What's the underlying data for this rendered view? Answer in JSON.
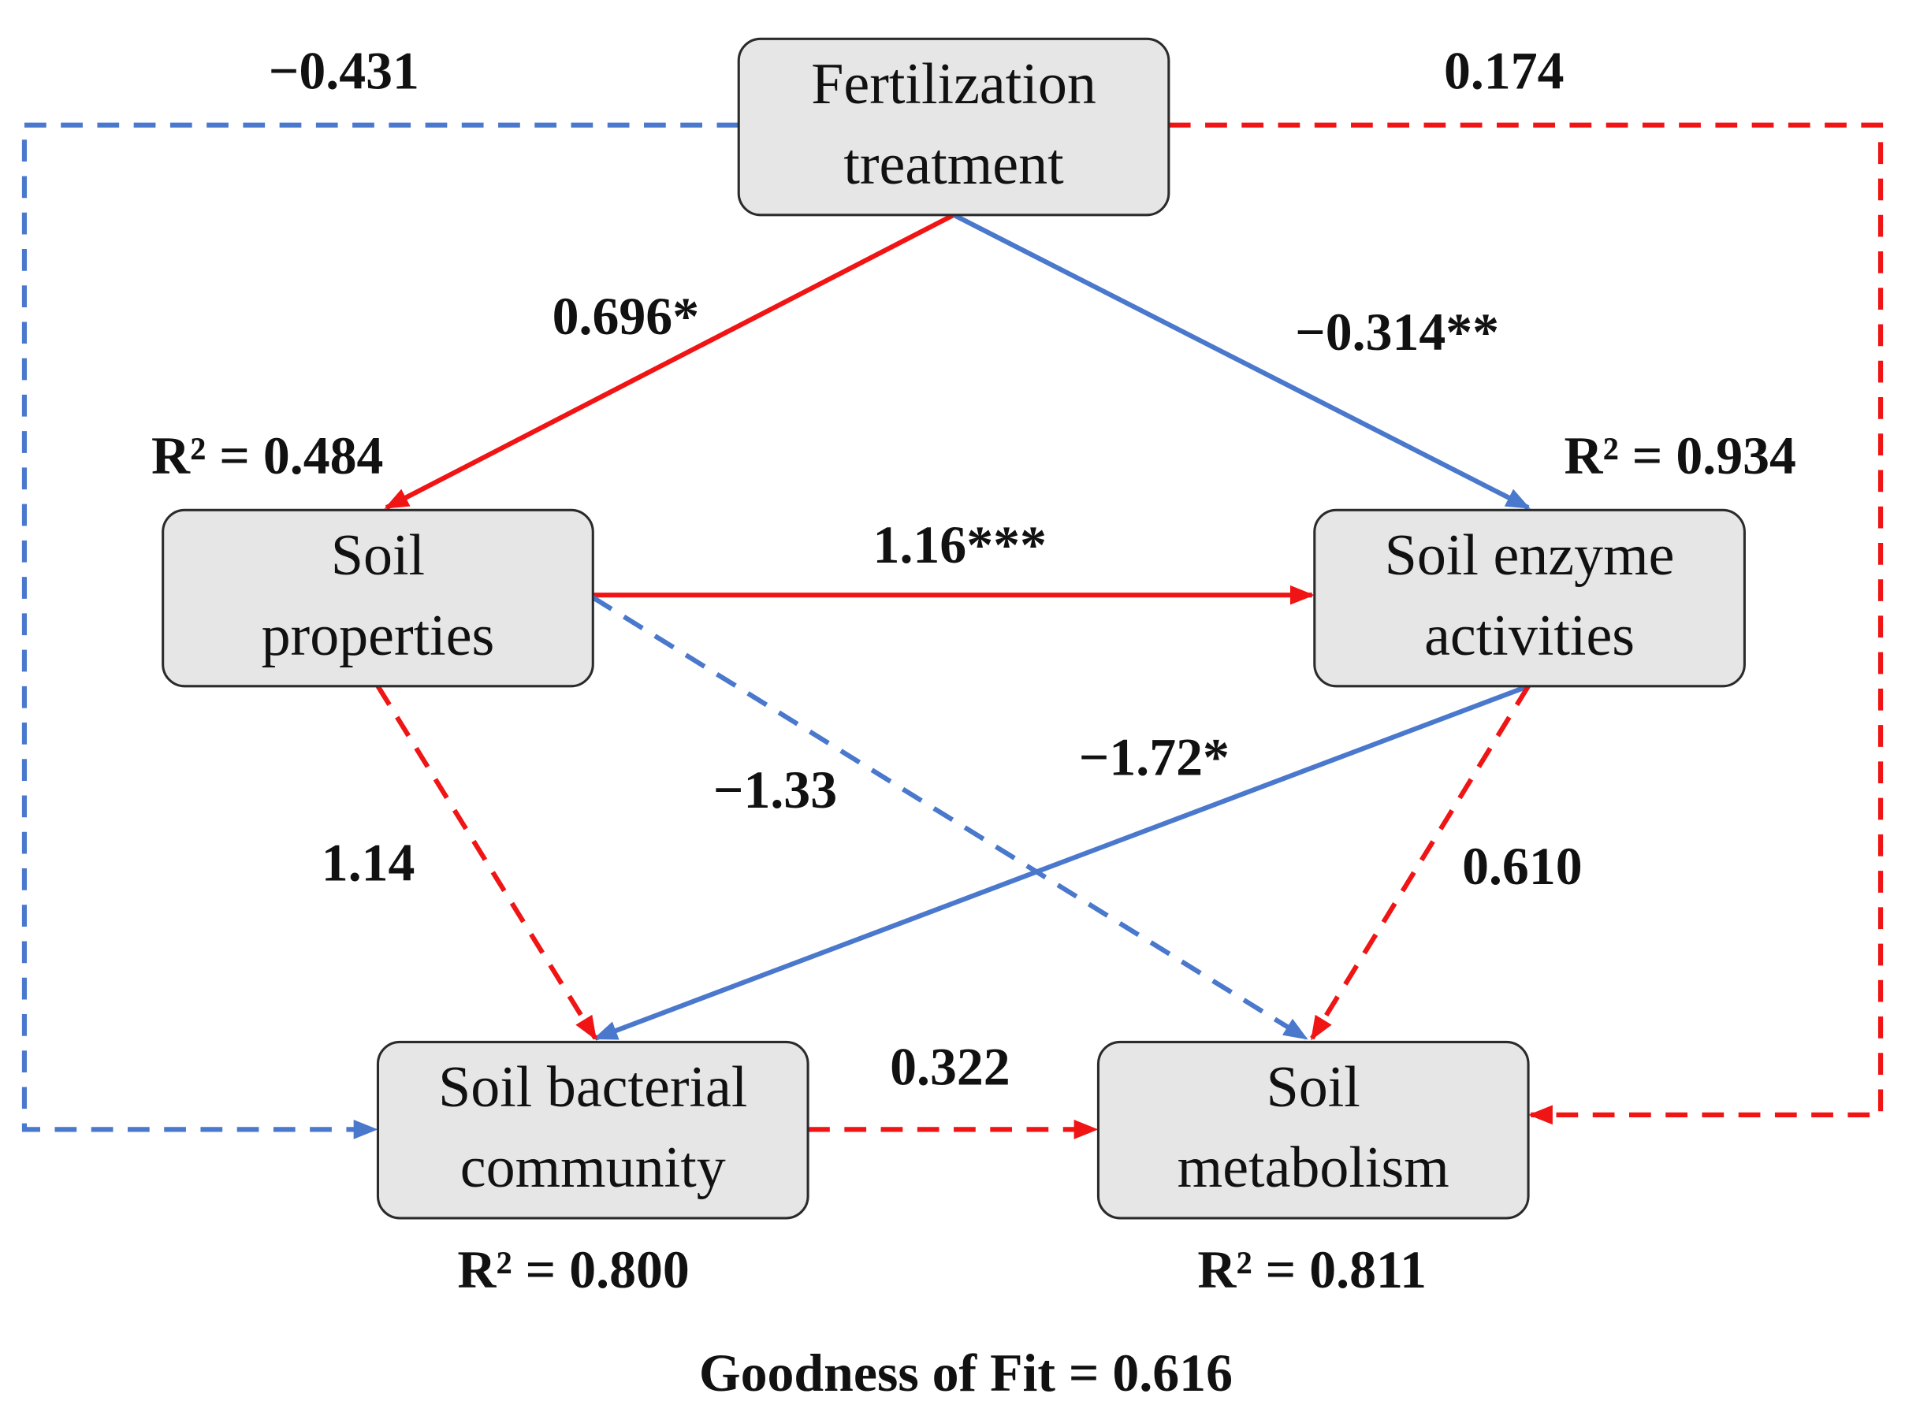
{
  "nodes": [
    {
      "lines": [
        "Fertilization",
        "treatment"
      ]
    },
    {
      "lines": [
        "Soil",
        "properties"
      ],
      "r2": "R² = 0.484"
    },
    {
      "lines": [
        "Soil enzyme",
        "activities"
      ],
      "r2": "R² = 0.934"
    },
    {
      "lines": [
        "Soil bacterial",
        "community"
      ],
      "r2": "R² = 0.800"
    },
    {
      "lines": [
        "Soil",
        "metabolism"
      ],
      "r2": "R² = 0.811"
    }
  ],
  "edges": [
    {
      "label": "0.696*"
    },
    {
      "label": "−0.314**"
    },
    {
      "label": "1.16***"
    },
    {
      "label": "−1.33"
    },
    {
      "label": "−1.72*"
    },
    {
      "label": "1.14"
    },
    {
      "label": "0.610"
    },
    {
      "label": "0.322"
    },
    {
      "label": "−0.431"
    },
    {
      "label": "0.174"
    }
  ],
  "footer": "Goodness of Fit = 0.616"
}
